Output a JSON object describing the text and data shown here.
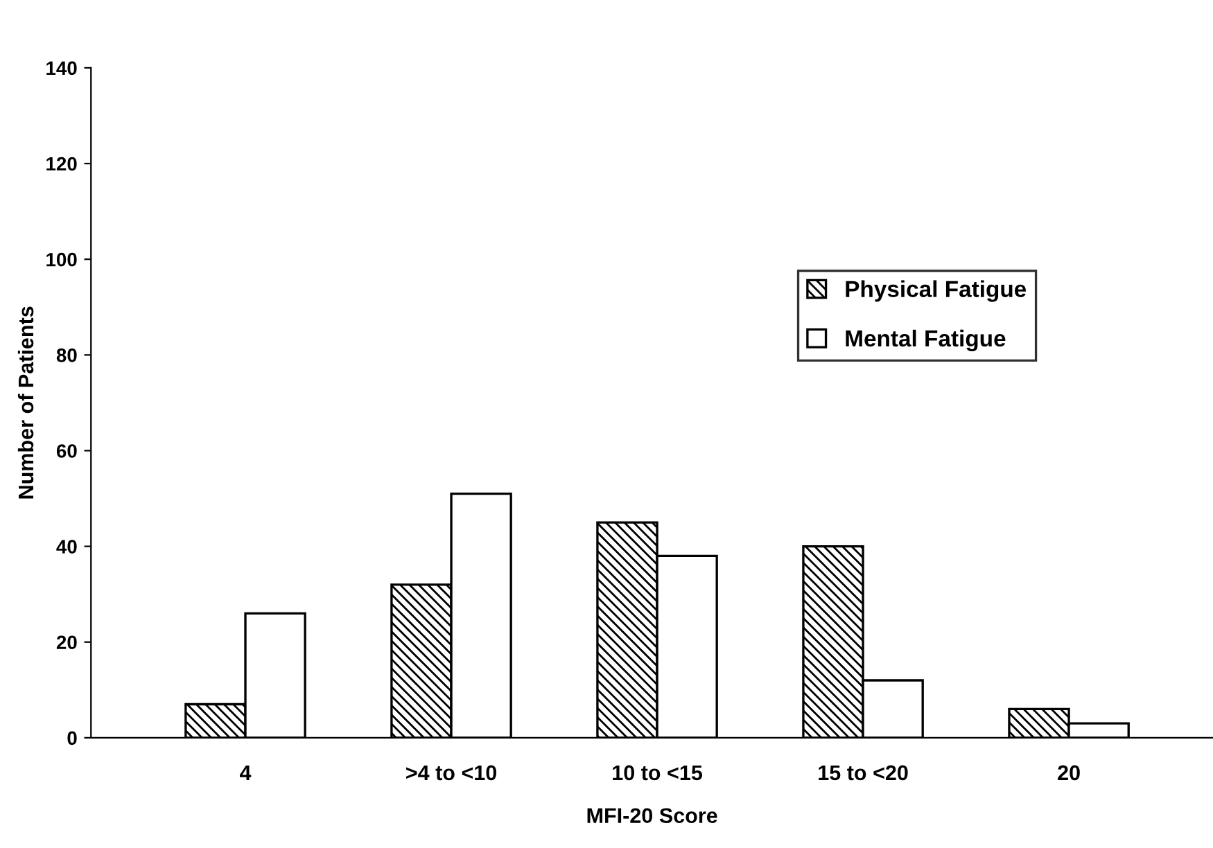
{
  "chart_data": {
    "type": "bar",
    "xlabel": "MFI-20 Score",
    "ylabel": "Number of Patients",
    "categories": [
      "4",
      ">4 to <10",
      "10 to <15",
      "15 to <20",
      "20"
    ],
    "series": [
      {
        "name": "Physical Fatigue",
        "color": "#000000",
        "values": [
          7,
          32,
          45,
          40,
          6
        ]
      },
      {
        "name": "Mental Fatigue",
        "color": "#ffffff",
        "values": [
          26,
          51,
          38,
          12,
          3
        ]
      }
    ],
    "ylim": [
      0,
      140
    ],
    "yticks": [
      0,
      20,
      40,
      60,
      80,
      100,
      120,
      140
    ],
    "grid": false,
    "legend": "right"
  }
}
